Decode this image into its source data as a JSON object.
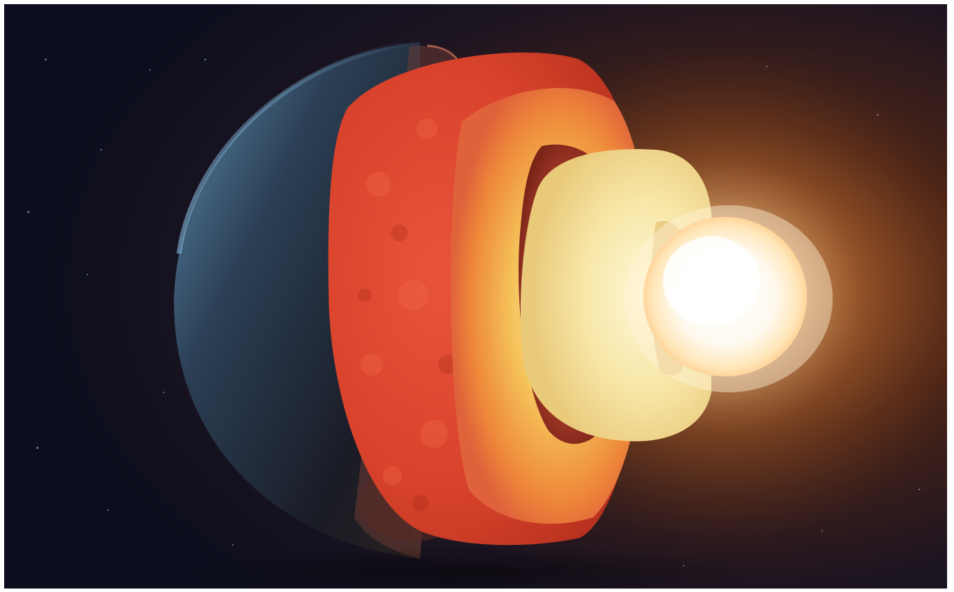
{
  "image": {
    "subject": "earth-interior-cutaway",
    "palette": {
      "space_dark": "#0d0f1e",
      "space_warm": "#5a2a14",
      "crust_blue": "#2f4f6a",
      "mantle_red": "#d8442a",
      "mantle_orange": "#ef8a38",
      "outer_core_yellow": "#f3e2a0",
      "inner_core_white": "#fffaf0",
      "glow": "#ffcf8a"
    }
  }
}
